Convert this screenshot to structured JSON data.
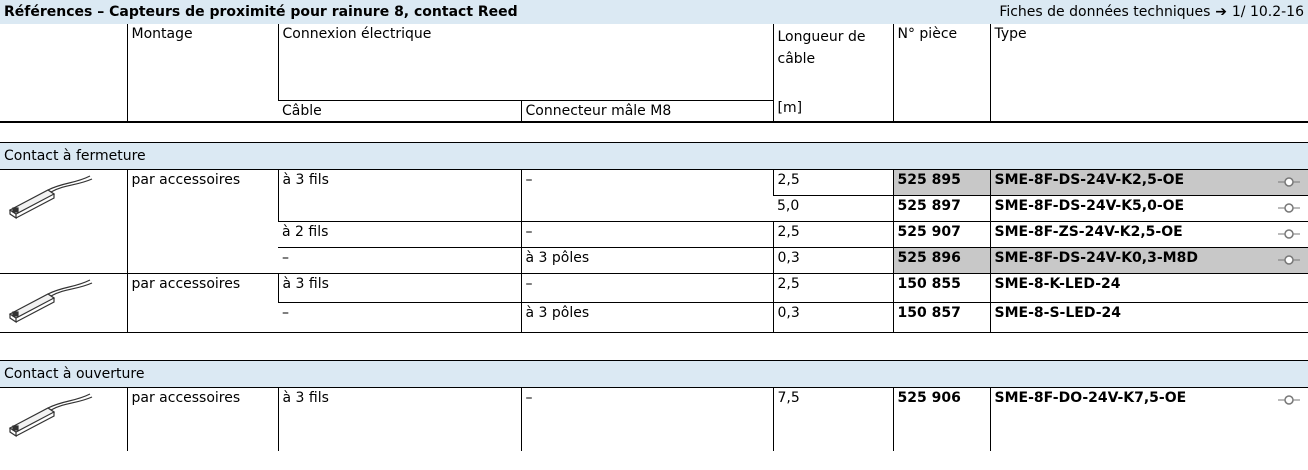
{
  "header": {
    "title": "Références – Capteurs de proximité pour rainure 8, contact Reed",
    "datasheet_label": "Fiches de données techniques",
    "datasheet_ref": "1/ 10.2-16"
  },
  "columns": {
    "montage": "Montage",
    "connexion": "Connexion électrique",
    "cable": "Câble",
    "connecteur": "Connecteur mâle M8",
    "longueur": "Longueur de câble",
    "unit": "[m]",
    "piece": "N° pièce",
    "type": "Type"
  },
  "sections": [
    {
      "title": "Contact à fermeture",
      "groups": [
        {
          "montage": "par accessoires",
          "rows": [
            {
              "cable": "à 3 fils",
              "connecteur": "–",
              "longueur": "2,5",
              "piece": "525 895",
              "type": "SME-8F-DS-24V-K2,5-OE",
              "highlight": true,
              "symbol": true
            },
            {
              "cable": null,
              "connecteur": null,
              "longueur": "5,0",
              "piece": "525 897",
              "type": "SME-8F-DS-24V-K5,0-OE",
              "highlight": false,
              "symbol": true
            },
            {
              "cable": "à 2 fils",
              "connecteur": "–",
              "longueur": "2,5",
              "piece": "525 907",
              "type": "SME-8F-ZS-24V-K2,5-OE",
              "highlight": false,
              "symbol": true
            },
            {
              "cable": "–",
              "connecteur": "à 3 pôles",
              "longueur": "0,3",
              "piece": "525 896",
              "type": "SME-8F-DS-24V-K0,3-M8D",
              "highlight": true,
              "symbol": true
            }
          ]
        },
        {
          "montage": "par accessoires",
          "rows": [
            {
              "cable": "à 3 fils",
              "connecteur": "–",
              "longueur": "2,5",
              "piece": "150 855",
              "type": "SME-8-K-LED-24",
              "highlight": false,
              "symbol": false
            },
            {
              "cable": "–",
              "connecteur": "à 3 pôles",
              "longueur": "0,3",
              "piece": "150 857",
              "type": "SME-8-S-LED-24",
              "highlight": false,
              "symbol": false
            }
          ]
        }
      ]
    },
    {
      "title": "Contact à ouverture",
      "groups": [
        {
          "montage": "par accessoires",
          "rows": [
            {
              "cable": "à 3 fils",
              "connecteur": "–",
              "longueur": "7,5",
              "piece": "525 906",
              "type": "SME-8F-DO-24V-K7,5-OE",
              "highlight": false,
              "symbol": true
            }
          ]
        }
      ]
    }
  ]
}
